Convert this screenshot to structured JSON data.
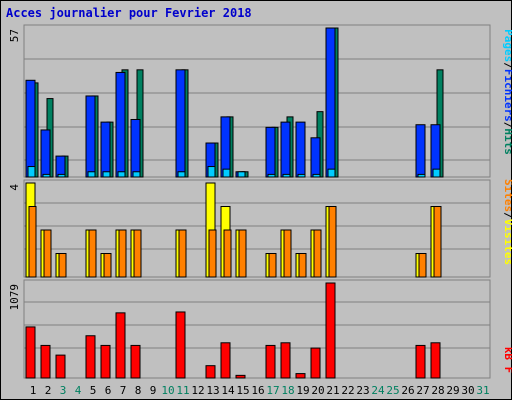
{
  "title": "Acces journalier pour Fevrier 2018",
  "colors": {
    "background": "#c0c0c0",
    "title": "#0000cc",
    "pages": "#00ccff",
    "fichiers": "#0033ff",
    "hits": "#008060",
    "visites": "#ffff00",
    "sites": "#ff8000",
    "kbf": "#ff0000",
    "weekend": "#008060",
    "weekday": "#000000"
  },
  "legend": {
    "top": [
      {
        "text": "Pages",
        "color": "#00ccff"
      },
      {
        "text": "/",
        "color": "#000000"
      },
      {
        "text": "Fichiers",
        "color": "#0033ff"
      },
      {
        "text": "/",
        "color": "#000000"
      },
      {
        "text": "Hits",
        "color": "#008060"
      }
    ],
    "middle": [
      {
        "text": "Sites",
        "color": "#ff8000"
      },
      {
        "text": "/",
        "color": "#000000"
      },
      {
        "text": "Visites",
        "color": "#ffff00"
      }
    ],
    "bottom": [
      {
        "text": "kB F",
        "color": "#ff0000"
      }
    ]
  },
  "chart_data": [
    {
      "type": "bar",
      "panel": "top",
      "ymax_label": "57",
      "ylim": [
        0,
        57
      ],
      "series": [
        {
          "name": "Hits",
          "color": "#008060",
          "values": [
            36,
            30,
            8,
            0,
            31,
            21,
            41,
            41,
            0,
            0,
            41,
            0,
            13,
            23,
            2,
            0,
            19,
            23,
            0,
            25,
            57,
            0,
            0,
            0,
            0,
            0,
            0,
            41,
            0,
            0,
            0
          ]
        },
        {
          "name": "Fichiers",
          "color": "#0033ff",
          "values": [
            37,
            18,
            8,
            0,
            31,
            21,
            40,
            22,
            0,
            0,
            41,
            0,
            13,
            23,
            2,
            0,
            19,
            21,
            21,
            15,
            57,
            0,
            0,
            0,
            0,
            0,
            20,
            20,
            0,
            0,
            0
          ]
        },
        {
          "name": "Pages",
          "color": "#00ccff",
          "values": [
            4,
            1,
            1,
            0,
            2,
            2,
            2,
            2,
            0,
            0,
            2,
            0,
            4,
            3,
            2,
            0,
            1,
            1,
            1,
            1,
            3,
            0,
            0,
            0,
            0,
            0,
            1,
            3,
            0,
            0,
            0
          ]
        }
      ]
    },
    {
      "type": "bar",
      "panel": "middle",
      "ymax_label": "4",
      "ylim": [
        0,
        4
      ],
      "series": [
        {
          "name": "Visites",
          "color": "#ffff00",
          "values": [
            4,
            2,
            1,
            0,
            2,
            1,
            2,
            2,
            0,
            0,
            2,
            0,
            4,
            3,
            2,
            0,
            1,
            2,
            1,
            2,
            3,
            0,
            0,
            0,
            0,
            0,
            1,
            3,
            0,
            0,
            0
          ]
        },
        {
          "name": "Sites",
          "color": "#ff8000",
          "values": [
            3,
            2,
            1,
            0,
            2,
            1,
            2,
            2,
            0,
            0,
            2,
            0,
            2,
            2,
            2,
            0,
            1,
            2,
            1,
            2,
            3,
            0,
            0,
            0,
            0,
            0,
            1,
            3,
            0,
            0,
            0
          ]
        }
      ]
    },
    {
      "type": "bar",
      "panel": "bottom",
      "ymax_label": "1079",
      "ylim": [
        0,
        1079
      ],
      "series": [
        {
          "name": "kB F",
          "color": "#ff0000",
          "values": [
            580,
            370,
            260,
            0,
            480,
            370,
            740,
            370,
            0,
            0,
            750,
            0,
            140,
            400,
            30,
            0,
            370,
            400,
            50,
            340,
            1079,
            0,
            0,
            0,
            0,
            0,
            370,
            400,
            0,
            0,
            0
          ]
        }
      ]
    }
  ],
  "days": [
    {
      "label": "1",
      "weekend": false
    },
    {
      "label": "2",
      "weekend": false
    },
    {
      "label": "3",
      "weekend": true
    },
    {
      "label": "4",
      "weekend": true
    },
    {
      "label": "5",
      "weekend": false
    },
    {
      "label": "6",
      "weekend": false
    },
    {
      "label": "7",
      "weekend": false
    },
    {
      "label": "8",
      "weekend": false
    },
    {
      "label": "9",
      "weekend": false
    },
    {
      "label": "10",
      "weekend": true
    },
    {
      "label": "11",
      "weekend": true
    },
    {
      "label": "12",
      "weekend": false
    },
    {
      "label": "13",
      "weekend": false
    },
    {
      "label": "14",
      "weekend": false
    },
    {
      "label": "15",
      "weekend": false
    },
    {
      "label": "16",
      "weekend": false
    },
    {
      "label": "17",
      "weekend": true
    },
    {
      "label": "18",
      "weekend": true
    },
    {
      "label": "19",
      "weekend": false
    },
    {
      "label": "20",
      "weekend": false
    },
    {
      "label": "21",
      "weekend": false
    },
    {
      "label": "22",
      "weekend": false
    },
    {
      "label": "23",
      "weekend": false
    },
    {
      "label": "24",
      "weekend": true
    },
    {
      "label": "25",
      "weekend": true
    },
    {
      "label": "26",
      "weekend": false
    },
    {
      "label": "27",
      "weekend": false
    },
    {
      "label": "28",
      "weekend": false
    },
    {
      "label": "29",
      "weekend": false
    },
    {
      "label": "30",
      "weekend": false
    },
    {
      "label": "31",
      "weekend": true
    }
  ]
}
